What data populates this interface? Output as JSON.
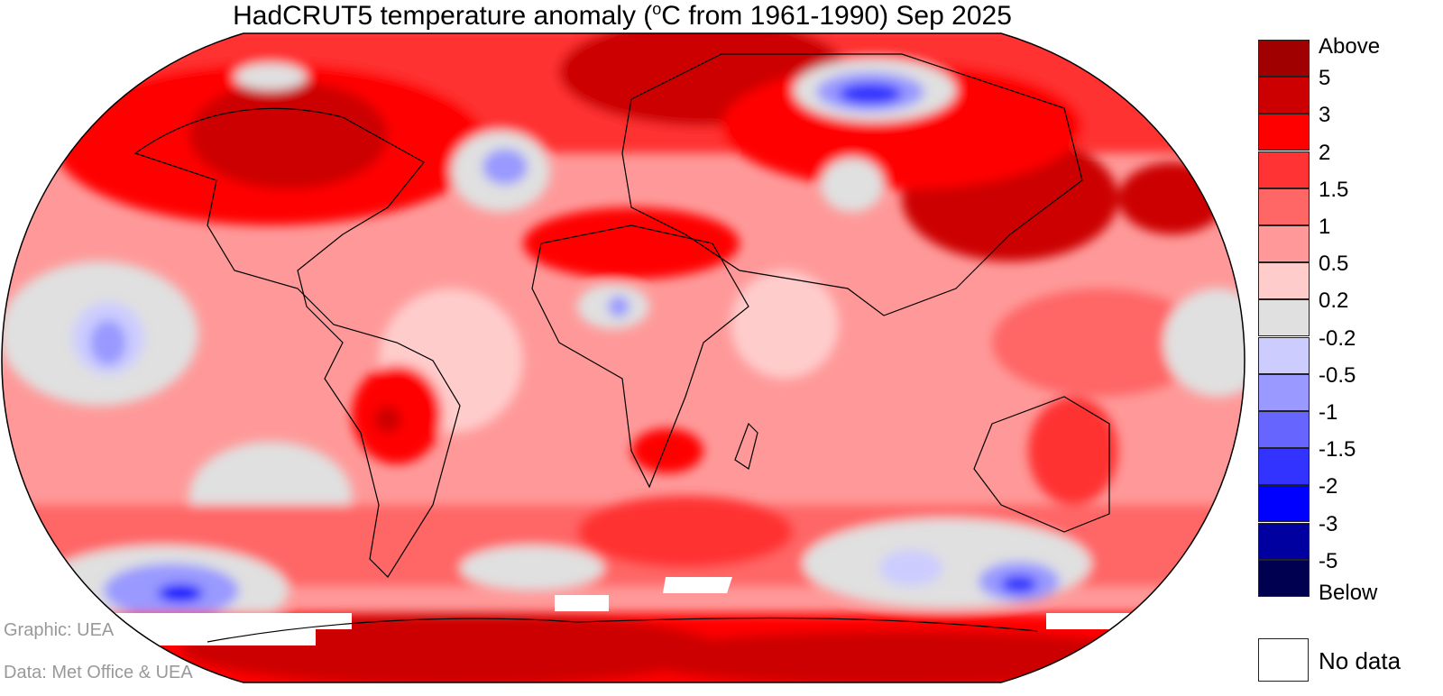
{
  "title": {
    "prefix": "HadCRUT5 temperature anomaly (",
    "unit_sup": "o",
    "suffix": "C from 1961-1990) Sep 2025"
  },
  "legend": {
    "colors": [
      "#a00000",
      "#cc0000",
      "#ff0000",
      "#ff3333",
      "#ff6666",
      "#ff9999",
      "#ffcccc",
      "#e0e0e0",
      "#ccccff",
      "#9999ff",
      "#6666ff",
      "#3333ff",
      "#0000ff",
      "#0000a0",
      "#000050"
    ],
    "labels": [
      "Above",
      "5",
      "3",
      "2",
      "1.5",
      "1",
      "0.5",
      "0.2",
      "-0.2",
      "-0.5",
      "-1",
      "-1.5",
      "-2",
      "-3",
      "-5",
      "Below"
    ],
    "no_data_label": "No data",
    "no_data_color": "#ffffff"
  },
  "credits": {
    "graphic": "Graphic: UEA",
    "data": "Data: Met Office & UEA"
  }
}
